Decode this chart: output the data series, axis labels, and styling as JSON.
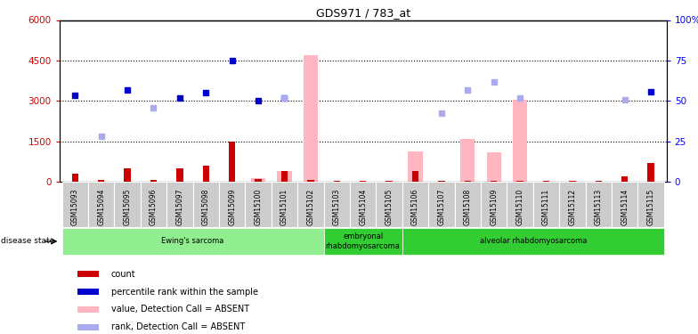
{
  "title": "GDS971 / 783_at",
  "samples": [
    "GSM15093",
    "GSM15094",
    "GSM15095",
    "GSM15096",
    "GSM15097",
    "GSM15098",
    "GSM15099",
    "GSM15100",
    "GSM15101",
    "GSM15102",
    "GSM15103",
    "GSM15104",
    "GSM15105",
    "GSM15106",
    "GSM15107",
    "GSM15108",
    "GSM15109",
    "GSM15110",
    "GSM15111",
    "GSM15112",
    "GSM15113",
    "GSM15114",
    "GSM15115"
  ],
  "count_red": [
    300,
    70,
    500,
    70,
    500,
    600,
    1500,
    100,
    400,
    80,
    30,
    30,
    30,
    400,
    30,
    30,
    30,
    30,
    30,
    30,
    30,
    200,
    700
  ],
  "rank_blue": [
    3200,
    null,
    3400,
    null,
    3100,
    3300,
    4500,
    3000,
    3100,
    null,
    null,
    null,
    null,
    null,
    null,
    null,
    null,
    null,
    null,
    null,
    null,
    null,
    3350
  ],
  "value_pink": [
    null,
    null,
    null,
    null,
    null,
    null,
    null,
    150,
    400,
    4700,
    null,
    null,
    null,
    1150,
    null,
    1600,
    1100,
    3050,
    null,
    null,
    null,
    null,
    null
  ],
  "rank_lightblue": [
    null,
    1700,
    null,
    2750,
    null,
    null,
    null,
    null,
    3100,
    null,
    null,
    null,
    null,
    null,
    2550,
    3400,
    3700,
    3100,
    null,
    null,
    null,
    3050,
    null
  ],
  "ylim_left": [
    0,
    6000
  ],
  "yticks_left": [
    0,
    1500,
    3000,
    4500,
    6000
  ],
  "ytick_labels_left": [
    "0",
    "1500",
    "3000",
    "4500",
    "6000"
  ],
  "ylim_right": [
    0,
    100
  ],
  "yticks_right": [
    0,
    25,
    50,
    75,
    100
  ],
  "ytick_labels_right": [
    "0",
    "25",
    "50",
    "75",
    "100%"
  ],
  "groups": [
    {
      "label": "Ewing's sarcoma",
      "start": 0,
      "end": 9,
      "color": "#90EE90"
    },
    {
      "label": "embryonal\nrhabdomyosarcoma",
      "start": 10,
      "end": 12,
      "color": "#32CD32"
    },
    {
      "label": "alveolar rhabdomyosarcoma",
      "start": 13,
      "end": 22,
      "color": "#32CD32"
    }
  ],
  "legend_items": [
    {
      "label": "count",
      "color": "#cc0000"
    },
    {
      "label": "percentile rank within the sample",
      "color": "#0000cc"
    },
    {
      "label": "value, Detection Call = ABSENT",
      "color": "#ffb6c1"
    },
    {
      "label": "rank, Detection Call = ABSENT",
      "color": "#aaaaee"
    }
  ]
}
